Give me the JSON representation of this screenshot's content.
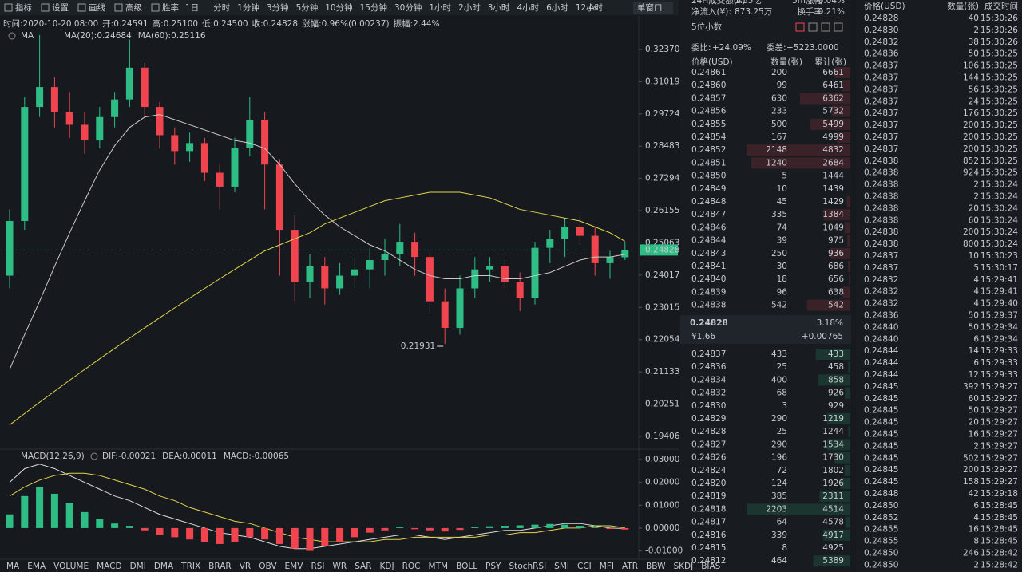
{
  "toolbar": {
    "tools": [
      "指标",
      "设置",
      "画线",
      "高级",
      "胜率"
    ],
    "intervals": [
      "1日",
      "分时",
      "1分钟",
      "3分钟",
      "5分钟",
      "10分钟",
      "15分钟",
      "30分钟",
      "1小时",
      "2小时",
      "3小时",
      "4小时",
      "6小时",
      "12小时"
    ],
    "refresh": "4s",
    "window": "单窗口"
  },
  "info": [
    [
      "时间:",
      "2020-10-20 08:00"
    ],
    [
      "开:",
      "0.24591"
    ],
    [
      "高:",
      "0.25100"
    ],
    [
      "低:",
      "0.24500"
    ],
    [
      "收:",
      "0.24828"
    ],
    [
      "涨幅:",
      "0.96%(0.00237)"
    ],
    [
      "振幅:",
      "2.44%"
    ]
  ],
  "chart_data": [
    {
      "type": "candlestick",
      "legend_title": "MA",
      "log_scale": true,
      "up_color": "#2ebd85",
      "down_color": "#f0454e",
      "ylim": [
        0.191,
        0.332
      ],
      "yticks": [
        {
          "value": 0.3237,
          "label": "0.32370"
        },
        0.31019,
        0.29724,
        0.28483,
        0.27294,
        0.26155,
        0.25063,
        0.24017,
        0.23015,
        0.22054,
        0.21133,
        0.20251,
        0.19406
      ],
      "open": [
        0.24,
        0.258,
        0.3,
        0.308,
        0.298,
        0.293,
        0.287,
        0.296,
        0.303,
        0.316,
        0.3,
        0.289,
        0.283,
        0.286,
        0.275,
        0.27,
        0.284,
        0.295,
        0.278,
        0.255,
        0.238,
        0.243,
        0.236,
        0.24,
        0.242,
        0.245,
        0.247,
        0.251,
        0.246,
        0.232,
        0.224,
        0.236,
        0.242,
        0.243,
        0.238,
        0.233,
        0.249,
        0.252,
        0.256,
        0.253,
        0.244,
        0.24591
      ],
      "high": [
        0.262,
        0.304,
        0.33,
        0.312,
        0.306,
        0.298,
        0.3,
        0.306,
        0.328,
        0.318,
        0.302,
        0.292,
        0.29,
        0.288,
        0.278,
        0.288,
        0.304,
        0.298,
        0.28,
        0.26,
        0.247,
        0.246,
        0.244,
        0.246,
        0.249,
        0.252,
        0.257,
        0.254,
        0.248,
        0.236,
        0.24,
        0.246,
        0.246,
        0.245,
        0.241,
        0.251,
        0.255,
        0.259,
        0.26,
        0.256,
        0.248,
        0.251
      ],
      "low": [
        0.236,
        0.255,
        0.296,
        0.292,
        0.288,
        0.282,
        0.284,
        0.292,
        0.3,
        0.296,
        0.284,
        0.278,
        0.279,
        0.272,
        0.262,
        0.268,
        0.281,
        0.262,
        0.24,
        0.232,
        0.233,
        0.231,
        0.234,
        0.236,
        0.236,
        0.24,
        0.243,
        0.24,
        0.228,
        0.21931,
        0.222,
        0.233,
        0.238,
        0.236,
        0.229,
        0.231,
        0.244,
        0.246,
        0.25,
        0.24,
        0.239,
        0.245
      ],
      "close": [
        0.258,
        0.3,
        0.308,
        0.298,
        0.293,
        0.287,
        0.296,
        0.303,
        0.316,
        0.3,
        0.289,
        0.283,
        0.286,
        0.275,
        0.27,
        0.284,
        0.295,
        0.278,
        0.255,
        0.238,
        0.243,
        0.236,
        0.24,
        0.242,
        0.245,
        0.247,
        0.251,
        0.246,
        0.232,
        0.224,
        0.236,
        0.242,
        0.243,
        0.238,
        0.233,
        0.249,
        0.252,
        0.256,
        0.253,
        0.244,
        0.246,
        0.24828
      ],
      "series": [
        {
          "name": "MA(20):0.24684",
          "color": "#c9c9c9",
          "values": [
            0.212,
            0.222,
            0.232,
            0.243,
            0.254,
            0.265,
            0.276,
            0.285,
            0.292,
            0.296,
            0.297,
            0.295,
            0.293,
            0.291,
            0.289,
            0.287,
            0.286,
            0.284,
            0.278,
            0.271,
            0.265,
            0.26,
            0.256,
            0.253,
            0.25,
            0.248,
            0.245,
            0.242,
            0.24,
            0.239,
            0.239,
            0.24,
            0.24,
            0.239,
            0.239,
            0.24,
            0.241,
            0.243,
            0.245,
            0.246,
            0.246,
            0.24684
          ]
        },
        {
          "name": "MA(60):0.25116",
          "color": "#e3d44a",
          "values": [
            0.197,
            0.2,
            0.203,
            0.206,
            0.209,
            0.212,
            0.215,
            0.218,
            0.221,
            0.224,
            0.227,
            0.23,
            0.233,
            0.236,
            0.239,
            0.242,
            0.245,
            0.248,
            0.25,
            0.252,
            0.254,
            0.257,
            0.259,
            0.261,
            0.263,
            0.265,
            0.266,
            0.267,
            0.268,
            0.268,
            0.268,
            0.267,
            0.266,
            0.264,
            0.262,
            0.261,
            0.26,
            0.259,
            0.258,
            0.256,
            0.254,
            0.25116
          ]
        }
      ]
    },
    {
      "type": "macd",
      "title": "MACD(12,26,9)",
      "up_color": "#2ebd85",
      "ylim": [
        -0.0133,
        0.0335
      ],
      "yticks": [
        {
          "value": 0.03,
          "label": "0.03000"
        },
        {
          "value": 0.02,
          "label": "0.02000"
        },
        {
          "value": 0.01,
          "label": "0.01000"
        },
        {
          "value": 0,
          "label": "0.00000"
        },
        {
          "value": -0.01,
          "label": "-0.01000"
        }
      ],
      "series": [
        {
          "name": "DIF:-0.00021",
          "color": "#dddddd",
          "values": [
            0.02,
            0.026,
            0.028,
            0.026,
            0.023,
            0.02,
            0.017,
            0.014,
            0.012,
            0.009,
            0.006,
            0.004,
            0.002,
            0.0,
            -0.002,
            -0.003,
            -0.004,
            -0.006,
            -0.008,
            -0.009,
            -0.009,
            -0.008,
            -0.007,
            -0.006,
            -0.005,
            -0.004,
            -0.003,
            -0.003,
            -0.004,
            -0.005,
            -0.004,
            -0.003,
            -0.002,
            -0.001,
            -0.001,
            0.0,
            0.001,
            0.002,
            0.002,
            0.001,
            0.0,
            -0.00021
          ]
        },
        {
          "name": "DEA:0.00011",
          "color": "#e3d44a",
          "values": [
            0.014,
            0.018,
            0.021,
            0.023,
            0.024,
            0.024,
            0.023,
            0.021,
            0.019,
            0.017,
            0.014,
            0.012,
            0.009,
            0.007,
            0.005,
            0.003,
            0.002,
            0.0,
            -0.002,
            -0.004,
            -0.005,
            -0.006,
            -0.006,
            -0.006,
            -0.006,
            -0.005,
            -0.005,
            -0.004,
            -0.004,
            -0.004,
            -0.004,
            -0.004,
            -0.003,
            -0.003,
            -0.002,
            -0.002,
            -0.001,
            0.0,
            0.0,
            0.001,
            0.001,
            0.00011
          ]
        },
        {
          "name": "MACD:-0.00065",
          "type": "bar",
          "color": "#f0454e",
          "values": [
            0.006,
            0.014,
            0.018,
            0.015,
            0.011,
            0.007,
            0.004,
            0.002,
            0.001,
            -0.001,
            -0.003,
            -0.004,
            -0.005,
            -0.006,
            -0.007,
            -0.006,
            -0.004,
            -0.005,
            -0.007,
            -0.009,
            -0.01,
            -0.008,
            -0.006,
            -0.004,
            -0.002,
            -0.001,
            0.0005,
            -0.0005,
            -0.001,
            -0.0015,
            -0.0008,
            0.0004,
            0.0008,
            0.001,
            0.0012,
            0.0015,
            0.0018,
            0.0015,
            0.001,
            0.0003,
            -0.0004,
            -0.00065
          ]
        }
      ]
    }
  ],
  "indicator_tabs": [
    "MA",
    "EMA",
    "VOLUME",
    "MACD",
    "DMI",
    "DMA",
    "TRIX",
    "BRAR",
    "VR",
    "OBV",
    "EMV",
    "RSI",
    "WR",
    "SAR",
    "KDJ",
    "ROC",
    "MTM",
    "BOLL",
    "PSY",
    "StochRSI",
    "SMI",
    "CCI",
    "MFI",
    "ATR",
    "BBW",
    "SKDJ",
    "BIAS"
  ],
  "active_tab": 3,
  "stats": [
    [
      "24H成交额(¥):",
      "1.55亿",
      "5m涨幅",
      "-0.04%"
    ],
    [
      "净流入(¥):",
      "873.25万",
      "换手率",
      "0.21%"
    ]
  ],
  "order_book": {
    "precision": "5位小数",
    "ratio": [
      "委比:",
      "+24.09%"
    ],
    "diff": [
      "委差:",
      "+5223.0000"
    ],
    "header": [
      "价格(USD)",
      "数量(张)",
      "累计(张)"
    ],
    "asks": [
      [
        "0.24861",
        200,
        6661
      ],
      [
        "0.24860",
        99,
        6461
      ],
      [
        "0.24857",
        630,
        6362
      ],
      [
        "0.24856",
        233,
        5732
      ],
      [
        "0.24855",
        500,
        5499
      ],
      [
        "0.24854",
        167,
        4999
      ],
      [
        "0.24852",
        2148,
        4832
      ],
      [
        "0.24851",
        1240,
        2684
      ],
      [
        "0.24850",
        5,
        1444
      ],
      [
        "0.24849",
        10,
        1439
      ],
      [
        "0.24848",
        45,
        1429
      ],
      [
        "0.24847",
        335,
        1384
      ],
      [
        "0.24846",
        74,
        1049
      ],
      [
        "0.24844",
        39,
        975
      ],
      [
        "0.24843",
        250,
        936
      ],
      [
        "0.24841",
        30,
        686
      ],
      [
        "0.24840",
        18,
        656
      ],
      [
        "0.24839",
        96,
        638
      ],
      [
        "0.24838",
        542,
        542
      ]
    ],
    "last": {
      "price": "0.24828",
      "cny": "¥1.66",
      "change_pct": "3.18%",
      "change": "+0.00765"
    },
    "bids": [
      [
        "0.24837",
        433,
        433
      ],
      [
        "0.24836",
        25,
        458
      ],
      [
        "0.24834",
        400,
        858
      ],
      [
        "0.24832",
        68,
        926
      ],
      [
        "0.24830",
        3,
        929
      ],
      [
        "0.24829",
        290,
        1219
      ],
      [
        "0.24828",
        25,
        1244
      ],
      [
        "0.24827",
        290,
        1534
      ],
      [
        "0.24826",
        196,
        1730
      ],
      [
        "0.24824",
        72,
        1802
      ],
      [
        "0.24820",
        124,
        1926
      ],
      [
        "0.24819",
        385,
        2311
      ],
      [
        "0.24818",
        2203,
        4514
      ],
      [
        "0.24817",
        64,
        4578
      ],
      [
        "0.24816",
        339,
        4917
      ],
      [
        "0.24815",
        8,
        4925
      ],
      [
        "0.24812",
        464,
        5389
      ]
    ]
  },
  "trades": {
    "header": [
      "价格(USD)",
      "数量(张)",
      "成交时间"
    ],
    "rows": [
      [
        "0.24828",
        40,
        "15:30:26",
        "#f0454e"
      ],
      [
        "0.24830",
        2,
        "15:30:26",
        "#f0454e"
      ],
      [
        "0.24832",
        38,
        "15:30:26",
        "#f0454e"
      ],
      [
        "0.24836",
        50,
        "15:30:25",
        "#f0454e"
      ],
      [
        "0.24837",
        106,
        "15:30:25",
        "#f0454e"
      ],
      [
        "0.24837",
        144,
        "15:30:25",
        "#7a3238"
      ],
      [
        "0.24837",
        56,
        "15:30:25",
        "#7a3238"
      ],
      [
        "0.24837",
        24,
        "15:30:25",
        "#7a3238"
      ],
      [
        "0.24837",
        176,
        "15:30:25",
        "#7a3238"
      ],
      [
        "0.24837",
        200,
        "15:30:25",
        "#7a3238"
      ],
      [
        "0.24837",
        200,
        "15:30:25",
        "#7a3238"
      ],
      [
        "0.24837",
        200,
        "15:30:25",
        "#7a3238"
      ],
      [
        "0.24838",
        852,
        "15:30:25",
        "#f0454e"
      ],
      [
        "0.24838",
        924,
        "15:30:25",
        "#7a3238"
      ],
      [
        "0.24838",
        2,
        "15:30:24",
        "#1f6b4e"
      ],
      [
        "0.24838",
        2,
        "15:30:24",
        "#1f6b4e"
      ],
      [
        "0.24838",
        20,
        "15:30:24",
        "#1f6b4e"
      ],
      [
        "0.24838",
        60,
        "15:30:24",
        "#1f6b4e"
      ],
      [
        "0.24838",
        200,
        "15:30:24",
        "#1f6b4e"
      ],
      [
        "0.24838",
        800,
        "15:30:24",
        "#1f6b4e"
      ],
      [
        "0.24837",
        10,
        "15:30:23",
        "#f0454e"
      ],
      [
        "0.24837",
        5,
        "15:30:17",
        "#7a3238"
      ],
      [
        "0.24832",
        4,
        "15:29:41",
        "#f0454e"
      ],
      [
        "0.24832",
        4,
        "15:29:41",
        "#7a3238"
      ],
      [
        "0.24832",
        4,
        "15:29:40",
        "#7a3238"
      ],
      [
        "0.24836",
        50,
        "15:29:37",
        "#f0454e"
      ],
      [
        "0.24840",
        50,
        "15:29:34",
        "#f0454e"
      ],
      [
        "0.24840",
        6,
        "15:29:34",
        "#7a3238"
      ],
      [
        "0.24844",
        14,
        "15:29:33",
        "#f0454e"
      ],
      [
        "0.24844",
        6,
        "15:29:33",
        "#7a3238"
      ],
      [
        "0.24844",
        12,
        "15:29:33",
        "#7a3238"
      ],
      [
        "0.24845",
        392,
        "15:29:27",
        "#2ebd85"
      ],
      [
        "0.24845",
        60,
        "15:29:27",
        "#1f6b4e"
      ],
      [
        "0.24845",
        50,
        "15:29:27",
        "#1f6b4e"
      ],
      [
        "0.24845",
        20,
        "15:29:27",
        "#1f6b4e"
      ],
      [
        "0.24845",
        16,
        "15:29:27",
        "#1f6b4e"
      ],
      [
        "0.24845",
        2,
        "15:29:27",
        "#1f6b4e"
      ],
      [
        "0.24845",
        502,
        "15:29:27",
        "#1f6b4e"
      ],
      [
        "0.24845",
        200,
        "15:29:27",
        "#1f6b4e"
      ],
      [
        "0.24845",
        158,
        "15:29:27",
        "#1f6b4e"
      ],
      [
        "0.24848",
        42,
        "15:29:18",
        "#f0454e"
      ],
      [
        "0.24850",
        6,
        "15:28:45",
        "#f0454e"
      ],
      [
        "0.24852",
        4,
        "15:28:45",
        "#f0454e"
      ],
      [
        "0.24855",
        16,
        "15:28:45",
        "#f0454e"
      ],
      [
        "0.24855",
        8,
        "15:28:45",
        "#7a3238"
      ],
      [
        "0.24850",
        246,
        "15:28:42",
        "#2ebd85"
      ],
      [
        "0.24850",
        2,
        "15:28:42",
        "#1f6b4e"
      ]
    ]
  }
}
